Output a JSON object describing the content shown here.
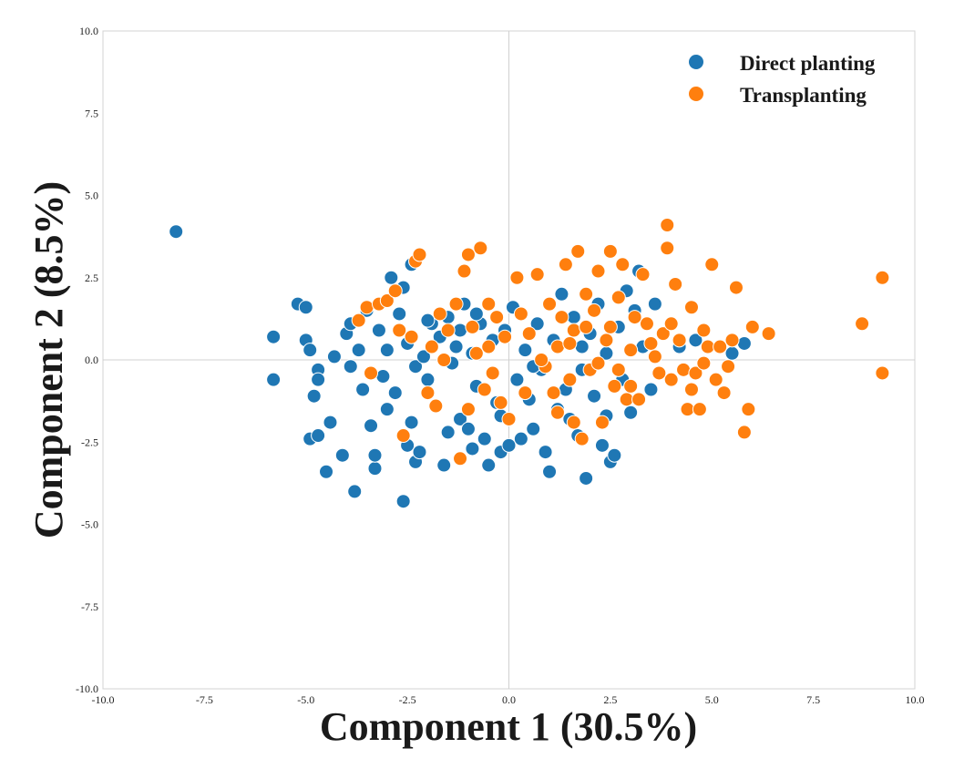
{
  "chart_data": {
    "type": "scatter",
    "title": "",
    "xlabel": "Component 1 (30.5%)",
    "ylabel": "Component 2 (8.5%)",
    "xlim": [
      -10,
      10
    ],
    "ylim": [
      -10,
      10
    ],
    "xticks": [
      -10,
      -7.5,
      -5,
      -2.5,
      0,
      2.5,
      5,
      7.5,
      10
    ],
    "yticks": [
      -10,
      -7.5,
      -5,
      -2.5,
      0,
      2.5,
      5,
      7.5,
      10
    ],
    "xtick_labels": [
      "-10.0",
      "-7.5",
      "-5.0",
      "-2.5",
      "0.0",
      "2.5",
      "5.0",
      "7.5",
      "10.0"
    ],
    "ytick_labels": [
      "-10.0",
      "-7.5",
      "-5.0",
      "-2.5",
      "0.0",
      "2.5",
      "5.0",
      "7.5",
      "10.0"
    ],
    "grid": false,
    "zero_lines": true,
    "legend_position": "top-right",
    "series": [
      {
        "name": "Direct planting",
        "color": "#1f77b4",
        "points": [
          [
            -8.2,
            3.9
          ],
          [
            -5.8,
            0.7
          ],
          [
            -5.8,
            -0.6
          ],
          [
            -5.2,
            1.7
          ],
          [
            -5.0,
            1.6
          ],
          [
            -5.0,
            0.6
          ],
          [
            -4.9,
            0.3
          ],
          [
            -4.8,
            -1.1
          ],
          [
            -4.7,
            -0.3
          ],
          [
            -4.7,
            -0.6
          ],
          [
            -4.9,
            -2.4
          ],
          [
            -4.7,
            -2.3
          ],
          [
            -4.5,
            -3.4
          ],
          [
            -4.4,
            -1.9
          ],
          [
            -4.3,
            0.1
          ],
          [
            -4.1,
            -2.9
          ],
          [
            -4.0,
            0.8
          ],
          [
            -3.9,
            1.1
          ],
          [
            -3.8,
            -4.0
          ],
          [
            -3.7,
            0.3
          ],
          [
            -3.6,
            -0.9
          ],
          [
            -3.5,
            1.5
          ],
          [
            -3.4,
            -2.0
          ],
          [
            -3.3,
            -3.3
          ],
          [
            -3.3,
            -2.9
          ],
          [
            -3.2,
            0.9
          ],
          [
            -3.1,
            -0.5
          ],
          [
            -3.0,
            0.3
          ],
          [
            -2.9,
            2.5
          ],
          [
            -2.8,
            -1.0
          ],
          [
            -2.7,
            1.4
          ],
          [
            -2.6,
            2.2
          ],
          [
            -2.5,
            0.5
          ],
          [
            -2.4,
            2.9
          ],
          [
            -2.3,
            -0.2
          ],
          [
            -2.6,
            -4.3
          ],
          [
            -2.5,
            -2.6
          ],
          [
            -2.4,
            -1.9
          ],
          [
            -2.3,
            -3.1
          ],
          [
            -2.2,
            -2.8
          ],
          [
            -2.1,
            0.1
          ],
          [
            -2.0,
            -0.6
          ],
          [
            -1.9,
            1.1
          ],
          [
            -1.8,
            -1.4
          ],
          [
            -1.7,
            0.7
          ],
          [
            -1.6,
            -3.2
          ],
          [
            -1.5,
            1.3
          ],
          [
            -1.4,
            -0.1
          ],
          [
            -1.3,
            0.4
          ],
          [
            -1.2,
            -1.8
          ],
          [
            -1.1,
            1.7
          ],
          [
            -1.0,
            -2.1
          ],
          [
            -0.9,
            0.2
          ],
          [
            -0.9,
            -2.7
          ],
          [
            -0.8,
            -0.8
          ],
          [
            -0.7,
            1.1
          ],
          [
            -0.6,
            -2.4
          ],
          [
            -0.5,
            -3.2
          ],
          [
            -0.4,
            0.6
          ],
          [
            -0.3,
            -1.3
          ],
          [
            -0.2,
            -2.8
          ],
          [
            -0.1,
            0.9
          ],
          [
            0.0,
            -2.6
          ],
          [
            0.1,
            1.6
          ],
          [
            0.2,
            -0.6
          ],
          [
            0.3,
            -2.4
          ],
          [
            0.4,
            0.3
          ],
          [
            0.5,
            -1.2
          ],
          [
            0.6,
            -2.1
          ],
          [
            0.7,
            1.1
          ],
          [
            0.8,
            -0.3
          ],
          [
            0.9,
            -2.8
          ],
          [
            1.0,
            -3.4
          ],
          [
            1.1,
            0.6
          ],
          [
            1.2,
            -1.5
          ],
          [
            1.3,
            2.0
          ],
          [
            1.4,
            -0.9
          ],
          [
            1.5,
            -1.8
          ],
          [
            1.6,
            1.3
          ],
          [
            1.7,
            -2.3
          ],
          [
            1.8,
            -0.3
          ],
          [
            1.9,
            -3.6
          ],
          [
            2.0,
            0.8
          ],
          [
            2.1,
            -1.1
          ],
          [
            2.2,
            1.7
          ],
          [
            2.3,
            -2.6
          ],
          [
            2.4,
            0.2
          ],
          [
            2.5,
            -3.1
          ],
          [
            2.6,
            -2.9
          ],
          [
            2.7,
            1.0
          ],
          [
            2.8,
            -0.6
          ],
          [
            2.9,
            2.1
          ],
          [
            3.0,
            -1.6
          ],
          [
            3.1,
            1.5
          ],
          [
            3.2,
            2.7
          ],
          [
            3.3,
            0.4
          ],
          [
            3.5,
            -0.9
          ],
          [
            3.6,
            1.7
          ],
          [
            4.2,
            0.4
          ],
          [
            4.6,
            0.6
          ],
          [
            5.8,
            0.5
          ],
          [
            5.5,
            0.2
          ],
          [
            -3.9,
            -0.2
          ],
          [
            -3.0,
            -1.5
          ],
          [
            -1.5,
            -2.2
          ],
          [
            0.6,
            -0.2
          ],
          [
            1.8,
            0.4
          ],
          [
            -0.8,
            1.4
          ],
          [
            -2.0,
            1.2
          ],
          [
            2.4,
            -1.7
          ],
          [
            -0.2,
            -1.7
          ],
          [
            -1.2,
            0.9
          ]
        ]
      },
      {
        "name": "Transplanting",
        "color": "#ff7f0e",
        "points": [
          [
            -3.7,
            1.2
          ],
          [
            -3.5,
            1.6
          ],
          [
            -3.2,
            1.7
          ],
          [
            -3.0,
            1.8
          ],
          [
            -2.8,
            2.1
          ],
          [
            -2.7,
            0.9
          ],
          [
            -2.6,
            -2.3
          ],
          [
            -2.3,
            3.0
          ],
          [
            -2.2,
            3.2
          ],
          [
            -1.9,
            0.4
          ],
          [
            -1.7,
            1.4
          ],
          [
            -1.5,
            0.9
          ],
          [
            -1.3,
            1.7
          ],
          [
            -1.2,
            -3.0
          ],
          [
            -1.1,
            2.7
          ],
          [
            -1.0,
            3.2
          ],
          [
            -0.9,
            1.0
          ],
          [
            -0.8,
            0.2
          ],
          [
            -0.7,
            3.4
          ],
          [
            -0.6,
            -0.9
          ],
          [
            -0.5,
            1.7
          ],
          [
            -0.4,
            -0.4
          ],
          [
            -0.3,
            1.3
          ],
          [
            -0.2,
            -1.3
          ],
          [
            0.0,
            -1.8
          ],
          [
            0.2,
            2.5
          ],
          [
            0.5,
            0.8
          ],
          [
            0.7,
            2.6
          ],
          [
            0.9,
            -0.2
          ],
          [
            1.0,
            1.7
          ],
          [
            1.1,
            -1.0
          ],
          [
            1.2,
            0.4
          ],
          [
            1.3,
            1.3
          ],
          [
            1.4,
            2.9
          ],
          [
            1.5,
            -0.6
          ],
          [
            1.6,
            0.9
          ],
          [
            1.7,
            3.3
          ],
          [
            1.8,
            -2.4
          ],
          [
            1.9,
            2.0
          ],
          [
            2.0,
            -0.3
          ],
          [
            2.1,
            1.5
          ],
          [
            2.2,
            2.7
          ],
          [
            2.3,
            -1.9
          ],
          [
            2.4,
            0.6
          ],
          [
            2.5,
            3.3
          ],
          [
            2.6,
            -0.8
          ],
          [
            2.7,
            1.9
          ],
          [
            2.8,
            2.9
          ],
          [
            2.9,
            -1.2
          ],
          [
            3.0,
            0.3
          ],
          [
            3.1,
            1.3
          ],
          [
            3.2,
            -1.2
          ],
          [
            3.3,
            2.6
          ],
          [
            3.5,
            0.5
          ],
          [
            3.7,
            -0.4
          ],
          [
            3.8,
            0.8
          ],
          [
            3.9,
            4.1
          ],
          [
            3.9,
            3.4
          ],
          [
            4.0,
            -0.6
          ],
          [
            4.1,
            2.3
          ],
          [
            4.2,
            0.6
          ],
          [
            4.3,
            -0.3
          ],
          [
            4.4,
            -1.5
          ],
          [
            4.5,
            1.6
          ],
          [
            4.6,
            -0.4
          ],
          [
            4.7,
            -1.5
          ],
          [
            4.8,
            -0.1
          ],
          [
            4.9,
            0.4
          ],
          [
            5.0,
            2.9
          ],
          [
            5.1,
            -0.6
          ],
          [
            5.2,
            0.4
          ],
          [
            5.3,
            -1.0
          ],
          [
            5.5,
            0.6
          ],
          [
            5.6,
            2.2
          ],
          [
            5.8,
            -2.2
          ],
          [
            5.9,
            -1.5
          ],
          [
            6.0,
            1.0
          ],
          [
            6.4,
            0.8
          ],
          [
            8.7,
            1.1
          ],
          [
            9.2,
            2.5
          ],
          [
            9.2,
            -0.4
          ],
          [
            -3.4,
            -0.4
          ],
          [
            -2.0,
            -1.0
          ],
          [
            -1.0,
            -1.5
          ],
          [
            0.4,
            -1.0
          ],
          [
            1.6,
            -1.9
          ],
          [
            2.2,
            -0.1
          ],
          [
            3.6,
            0.1
          ],
          [
            4.5,
            -0.9
          ],
          [
            5.4,
            -0.2
          ],
          [
            -1.6,
            0.0
          ],
          [
            -0.5,
            0.4
          ],
          [
            0.8,
            0.0
          ],
          [
            1.9,
            1.0
          ],
          [
            2.7,
            -0.3
          ],
          [
            3.4,
            1.1
          ],
          [
            -2.4,
            0.7
          ],
          [
            0.3,
            1.4
          ],
          [
            1.2,
            -1.6
          ],
          [
            2.5,
            1.0
          ],
          [
            4.0,
            1.1
          ],
          [
            4.8,
            0.9
          ],
          [
            -1.8,
            -1.4
          ],
          [
            -0.1,
            0.7
          ],
          [
            1.5,
            0.5
          ],
          [
            3.0,
            -0.8
          ]
        ]
      }
    ]
  }
}
